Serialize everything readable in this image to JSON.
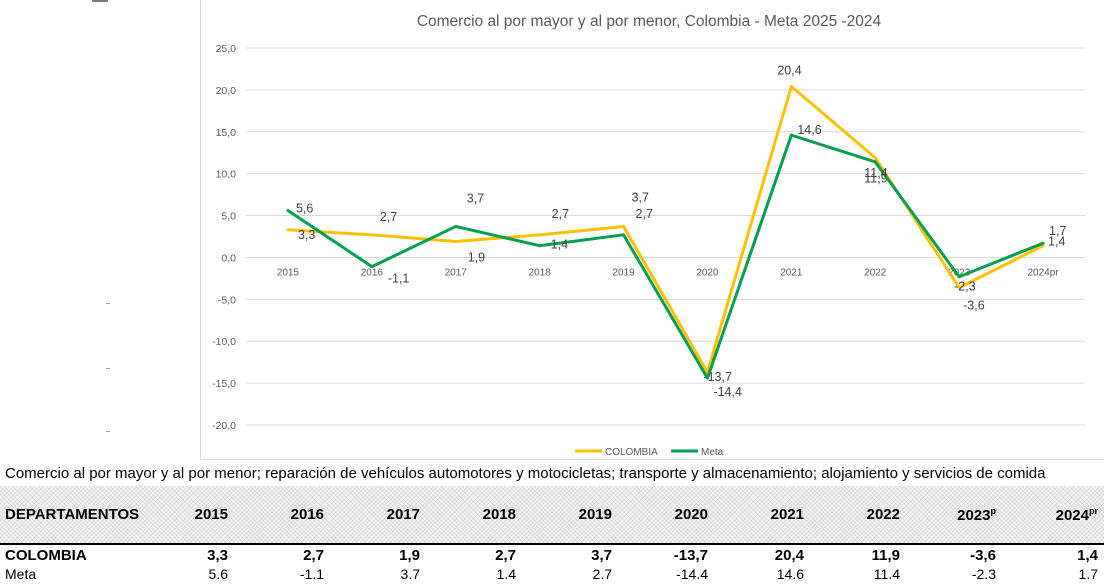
{
  "chart_data": {
    "type": "line",
    "title": "Comercio al por mayor y al por menor, Colombia - Meta 2025 -2024",
    "categories": [
      "2015",
      "2016",
      "2017",
      "2018",
      "2019",
      "2020",
      "2021",
      "2022",
      "2023",
      "2024pr"
    ],
    "series": [
      {
        "name": "COLOMBIA",
        "color": "#FFC000",
        "values": [
          3.3,
          2.7,
          1.9,
          2.7,
          3.7,
          -13.7,
          20.4,
          11.9,
          -3.6,
          1.4
        ],
        "labels": [
          "3,3",
          "2,7",
          "1,9",
          "2,7",
          "3,7",
          "-13,7",
          "20,4",
          "11,9",
          "-3,6",
          "1,4"
        ]
      },
      {
        "name": "Meta",
        "color": "#00A050",
        "values": [
          5.6,
          -1.1,
          3.7,
          1.4,
          2.7,
          -14.4,
          14.6,
          11.4,
          -2.3,
          1.7
        ],
        "labels": [
          "5,6",
          "-1,1",
          "3,7",
          "1,4",
          "2,7",
          "-14,4",
          "14,6",
          "11,4",
          "-2,3",
          "1,7"
        ]
      }
    ],
    "yticks": [
      "25,0",
      "20,0",
      "15,0",
      "10,0",
      "5,0",
      "0,0",
      "-5,0",
      "-10,0",
      "-15,0",
      "-20,0"
    ],
    "ylim": [
      -20,
      25
    ],
    "grid": true,
    "legend": "bottom"
  },
  "subtitle": "Comercio al por mayor y al por menor; reparación de vehículos automotores y motocicletas; transporte y almacenamiento; alojamiento y servicios de comida",
  "table": {
    "headers": [
      "DEPARTAMENTOS",
      "2015",
      "2016",
      "2017",
      "2018",
      "2019",
      "2020",
      "2021",
      "2022",
      "2023",
      "2024"
    ],
    "header_sups": [
      "",
      "",
      "",
      "",
      "",
      "",
      "",
      "",
      "",
      "p",
      "pr"
    ],
    "rows": [
      {
        "name": "COLOMBIA",
        "values": [
          "3,3",
          "2,7",
          "1,9",
          "2,7",
          "3,7",
          "-13,7",
          "20,4",
          "11,9",
          "-3,6",
          "1,4"
        ]
      },
      {
        "name": "Meta",
        "values": [
          "5.6",
          "-1.1",
          "3.7",
          "1.4",
          "2.7",
          "-14.4",
          "14.6",
          "11.4",
          "-2.3",
          "1.7"
        ]
      }
    ]
  }
}
